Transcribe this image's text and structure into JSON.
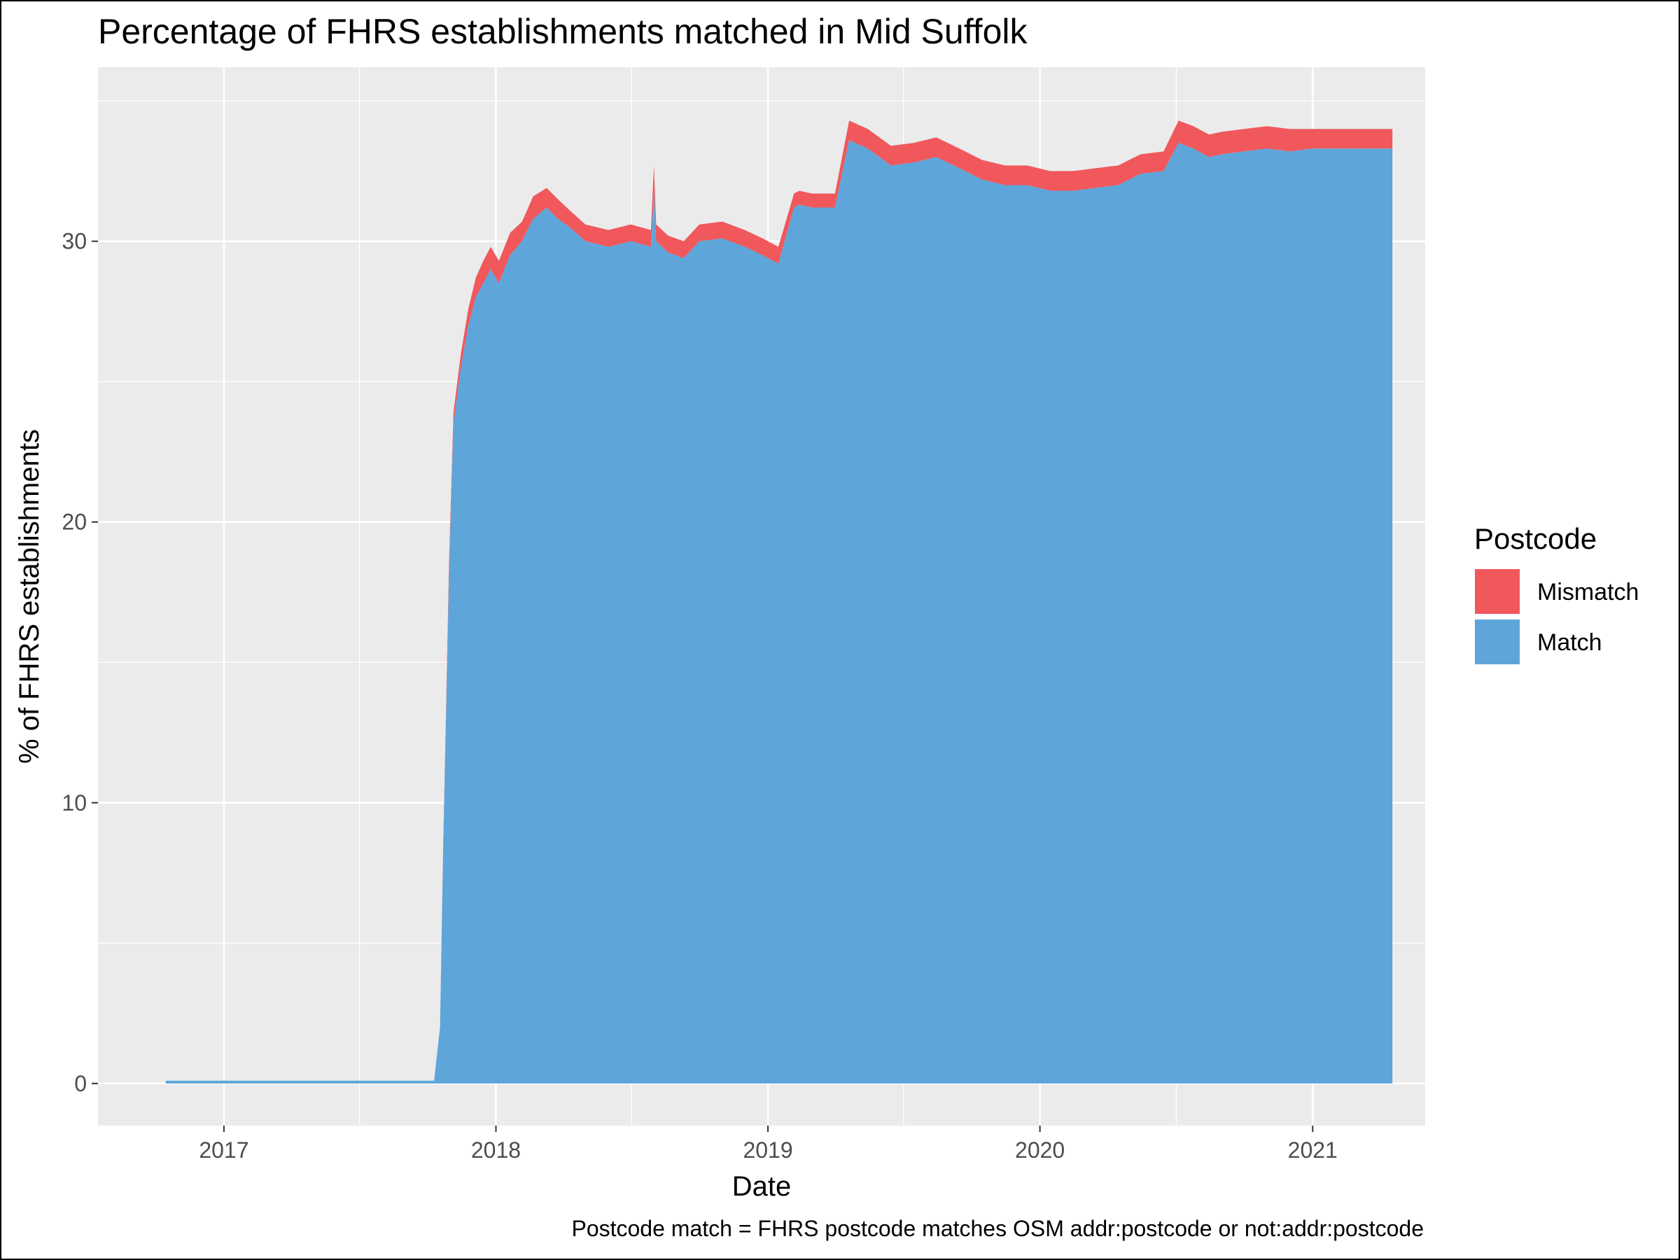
{
  "chart_data": {
    "type": "area",
    "stacked": true,
    "title": "Percentage of FHRS establishments matched in Mid Suffolk",
    "xlabel": "Date",
    "ylabel": "% of FHRS establishments",
    "caption": "Postcode match = FHRS postcode matches OSM addr:postcode or not:addr:postcode",
    "xlim": [
      "2016-07-16",
      "2021-06-01"
    ],
    "ylim": [
      -1.5,
      36.2
    ],
    "x_ticks": [
      "2017",
      "2018",
      "2019",
      "2020",
      "2021"
    ],
    "y_ticks": [
      "0",
      "10",
      "20",
      "30"
    ],
    "grid": true,
    "legend": {
      "title": "Postcode",
      "position": "right",
      "entries": [
        {
          "label": "Mismatch",
          "color": "#F0585C"
        },
        {
          "label": "Match",
          "color": "#5EA5DA"
        }
      ]
    },
    "x": [
      "2016-10-15",
      "2017-06-01",
      "2017-10-10",
      "2017-10-18",
      "2017-10-22",
      "2017-10-26",
      "2017-10-30",
      "2017-11-05",
      "2017-11-15",
      "2017-11-25",
      "2017-12-05",
      "2017-12-15",
      "2017-12-25",
      "2018-01-05",
      "2018-01-20",
      "2018-02-05",
      "2018-02-20",
      "2018-03-10",
      "2018-03-25",
      "2018-04-10",
      "2018-05-01",
      "2018-06-01",
      "2018-07-01",
      "2018-07-28",
      "2018-08-01",
      "2018-08-04",
      "2018-08-20",
      "2018-09-10",
      "2018-10-01",
      "2018-11-01",
      "2018-12-01",
      "2018-12-25",
      "2019-01-15",
      "2019-02-05",
      "2019-02-12",
      "2019-03-01",
      "2019-04-01",
      "2019-04-20",
      "2019-05-15",
      "2019-06-15",
      "2019-07-15",
      "2019-08-15",
      "2019-09-15",
      "2019-10-15",
      "2019-11-15",
      "2019-12-15",
      "2020-01-15",
      "2020-02-15",
      "2020-03-15",
      "2020-04-15",
      "2020-05-15",
      "2020-06-15",
      "2020-07-05",
      "2020-07-25",
      "2020-08-15",
      "2020-09-01",
      "2020-10-01",
      "2020-11-01",
      "2020-12-01",
      "2021-01-01",
      "2021-02-01",
      "2021-03-01",
      "2021-04-10",
      "2021-04-18"
    ],
    "series": [
      {
        "name": "Match",
        "values": [
          0.1,
          0.1,
          0.1,
          2,
          8,
          13,
          18,
          23.5,
          25.5,
          27,
          28,
          28.5,
          29,
          28.5,
          29.5,
          30,
          30.8,
          31.2,
          30.8,
          30.5,
          30,
          29.8,
          30,
          29.8,
          31.8,
          30,
          29.6,
          29.4,
          30,
          30.1,
          29.8,
          29.5,
          29.2,
          31.2,
          31.3,
          31.2,
          31.2,
          33.6,
          33.3,
          32.7,
          32.8,
          33,
          32.6,
          32.2,
          32,
          32,
          31.8,
          31.8,
          31.9,
          32,
          32.4,
          32.5,
          33.5,
          33.3,
          33,
          33.1,
          33.2,
          33.3,
          33.2,
          33.3,
          33.3,
          33.3,
          33.3,
          33.3
        ]
      },
      {
        "name": "Mismatch",
        "values": [
          0,
          0,
          0,
          0,
          0.2,
          0.3,
          0.5,
          0.4,
          0.5,
          0.6,
          0.7,
          0.8,
          0.8,
          0.8,
          0.8,
          0.7,
          0.8,
          0.7,
          0.7,
          0.6,
          0.6,
          0.6,
          0.6,
          0.6,
          0.9,
          0.6,
          0.6,
          0.6,
          0.6,
          0.6,
          0.6,
          0.6,
          0.6,
          0.5,
          0.5,
          0.5,
          0.5,
          0.7,
          0.7,
          0.7,
          0.7,
          0.7,
          0.7,
          0.7,
          0.7,
          0.7,
          0.7,
          0.7,
          0.7,
          0.7,
          0.7,
          0.7,
          0.8,
          0.8,
          0.8,
          0.8,
          0.8,
          0.8,
          0.8,
          0.7,
          0.7,
          0.7,
          0.7,
          0.7
        ]
      }
    ]
  }
}
